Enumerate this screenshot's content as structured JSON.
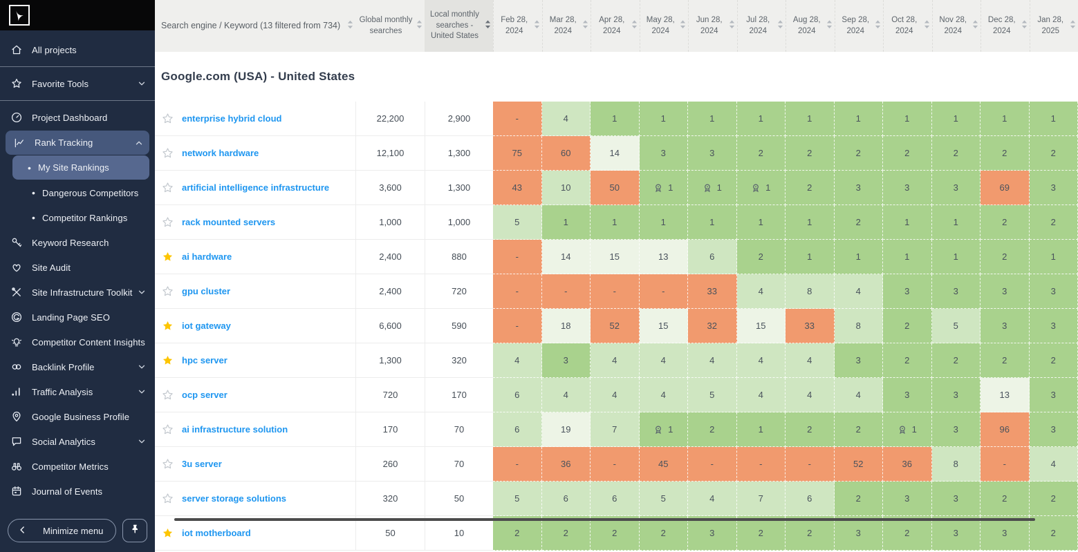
{
  "colors": {
    "rank_top": "#A9D28D",
    "rank_good": "#CFE6C1",
    "rank_mid": "#EDF4E6",
    "rank_poor": "#F19A6E",
    "keyword_link": "#1E96F0",
    "star_active": "#FDC500",
    "star_inactive": "#C0C6CC",
    "sidebar_bg": "#202C41",
    "sidebar_active": "#46587C",
    "sidebar_subactive": "#56688F"
  },
  "sidebar": {
    "items": [
      {
        "label": "All projects",
        "icon": "home"
      },
      {
        "divider": true
      },
      {
        "label": "Favorite Tools",
        "icon": "star",
        "chevron": "down"
      },
      {
        "divider": true
      },
      {
        "label": "Project Dashboard",
        "icon": "dashboard"
      },
      {
        "label": "Rank Tracking",
        "icon": "rank-tracking",
        "chevron": "up",
        "active": true
      },
      {
        "label": "My Site Rankings",
        "sub": true,
        "subactive": true
      },
      {
        "label": "Dangerous Competitors",
        "sub": true
      },
      {
        "label": "Competitor Rankings",
        "sub": true
      },
      {
        "label": "Keyword Research",
        "icon": "key"
      },
      {
        "label": "Site Audit",
        "icon": "heart"
      },
      {
        "label": "Site Infrastructure Toolkit",
        "icon": "tools",
        "chevron": "down"
      },
      {
        "label": "Landing Page SEO",
        "icon": "target"
      },
      {
        "label": "Competitor Content Insights",
        "icon": "bulb"
      },
      {
        "label": "Backlink Profile",
        "icon": "links",
        "chevron": "down"
      },
      {
        "label": "Traffic Analysis",
        "icon": "bars",
        "chevron": "down"
      },
      {
        "label": "Google Business Profile",
        "icon": "pin-location"
      },
      {
        "label": "Social Analytics",
        "icon": "chat",
        "chevron": "down"
      },
      {
        "label": "Competitor Metrics",
        "icon": "binoculars"
      },
      {
        "label": "Journal of Events",
        "icon": "calendar"
      }
    ],
    "minimize_label": "Minimize menu"
  },
  "table": {
    "keyword_header": "Search engine / Keyword (13 filtered from 734)",
    "global_header": "Global monthly\nsearches",
    "local_header": "Local monthly\nsearches -\nUnited States",
    "months": [
      "Feb 28,\n2024",
      "Mar 28,\n2024",
      "Apr 28,\n2024",
      "May 28,\n2024",
      "Jun 28,\n2024",
      "Jul 28,\n2024",
      "Aug 28,\n2024",
      "Sep 28,\n2024",
      "Oct 28,\n2024",
      "Nov 28,\n2024",
      "Dec 28,\n2024",
      "Jan 28,\n2025"
    ],
    "section_title": "Google.com (USA) - United States",
    "rows": [
      {
        "keyword": "enterprise hybrid cloud",
        "starred": false,
        "global": "22,200",
        "local": "2,900",
        "ranks": [
          "-",
          "4",
          "1",
          "1",
          "1",
          "1",
          "1",
          "1",
          "1",
          "1",
          "1",
          "1"
        ]
      },
      {
        "keyword": "network hardware",
        "starred": false,
        "global": "12,100",
        "local": "1,300",
        "ranks": [
          "75",
          "60",
          "14",
          "3",
          "3",
          "2",
          "2",
          "2",
          "2",
          "2",
          "2",
          "2"
        ]
      },
      {
        "keyword": "artificial intelligence infrastructure",
        "starred": false,
        "global": "3,600",
        "local": "1,300",
        "ranks": [
          "43",
          "10",
          "50",
          {
            "v": "1",
            "badge": true
          },
          {
            "v": "1",
            "badge": true
          },
          {
            "v": "1",
            "badge": true
          },
          "2",
          "3",
          "3",
          "3",
          "69",
          "3"
        ]
      },
      {
        "keyword": "rack mounted servers",
        "starred": false,
        "global": "1,000",
        "local": "1,000",
        "ranks": [
          "5",
          "1",
          "1",
          "1",
          "1",
          "1",
          "1",
          "2",
          "1",
          "1",
          "2",
          "2"
        ]
      },
      {
        "keyword": "ai hardware",
        "starred": true,
        "global": "2,400",
        "local": "880",
        "ranks": [
          "-",
          "14",
          "15",
          "13",
          "6",
          "2",
          "1",
          "1",
          "1",
          "1",
          "2",
          "1"
        ]
      },
      {
        "keyword": "gpu cluster",
        "starred": false,
        "global": "2,400",
        "local": "720",
        "ranks": [
          "-",
          "-",
          "-",
          "-",
          "33",
          "4",
          "8",
          "4",
          "3",
          "3",
          "3",
          "3"
        ]
      },
      {
        "keyword": "iot gateway",
        "starred": true,
        "global": "6,600",
        "local": "590",
        "ranks": [
          "-",
          "18",
          "52",
          "15",
          "32",
          "15",
          "33",
          "8",
          "2",
          "5",
          "3",
          "3"
        ]
      },
      {
        "keyword": "hpc server",
        "starred": true,
        "global": "1,300",
        "local": "320",
        "ranks": [
          "4",
          "3",
          "4",
          "4",
          "4",
          "4",
          "4",
          "3",
          "2",
          "2",
          "2",
          "2"
        ]
      },
      {
        "keyword": "ocp server",
        "starred": false,
        "global": "720",
        "local": "170",
        "ranks": [
          "6",
          "4",
          "4",
          "4",
          "5",
          "4",
          "4",
          "4",
          "3",
          "3",
          "13",
          "3"
        ]
      },
      {
        "keyword": "ai infrastructure solution",
        "starred": false,
        "global": "170",
        "local": "70",
        "ranks": [
          "6",
          "19",
          "7",
          {
            "v": "1",
            "badge": true
          },
          "2",
          "1",
          "2",
          "2",
          {
            "v": "1",
            "badge": true
          },
          "3",
          "96",
          "3"
        ]
      },
      {
        "keyword": "3u server",
        "starred": false,
        "global": "260",
        "local": "70",
        "ranks": [
          "-",
          "36",
          "-",
          "45",
          "-",
          "-",
          "-",
          "52",
          "36",
          "8",
          "-",
          "4"
        ]
      },
      {
        "keyword": "server storage solutions",
        "starred": false,
        "global": "320",
        "local": "50",
        "ranks": [
          "5",
          "6",
          "6",
          "5",
          "4",
          "7",
          "6",
          "2",
          "3",
          "3",
          "2",
          "2"
        ]
      },
      {
        "keyword": "iot motherboard",
        "starred": true,
        "global": "50",
        "local": "10",
        "ranks": [
          "2",
          "2",
          "2",
          "2",
          "3",
          "2",
          "2",
          "3",
          "2",
          "3",
          "3",
          "2"
        ]
      }
    ]
  }
}
